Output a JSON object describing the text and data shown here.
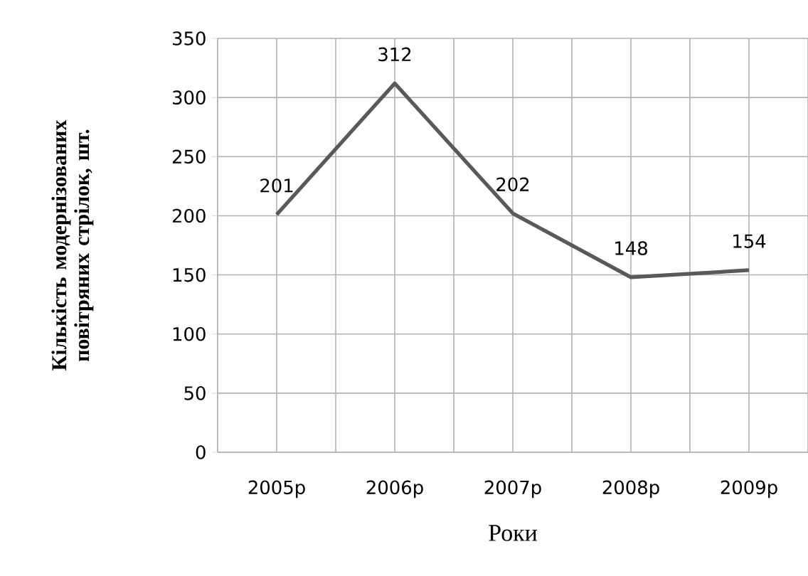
{
  "chart_data": {
    "type": "line",
    "xlabel": "Роки",
    "ylabel": "Кількість модернізованих повітряних стрілок, шт.",
    "categories": [
      "2005р",
      "2006р",
      "2007р",
      "2008р",
      "2009р"
    ],
    "values": [
      201,
      312,
      202,
      148,
      154
    ],
    "color": "#595959",
    "ylim": [
      0,
      350
    ],
    "yticks": [
      0,
      50,
      100,
      150,
      200,
      250,
      300,
      350
    ],
    "grid": true,
    "data_labels": true,
    "marker": "none",
    "line_style": "solid"
  }
}
